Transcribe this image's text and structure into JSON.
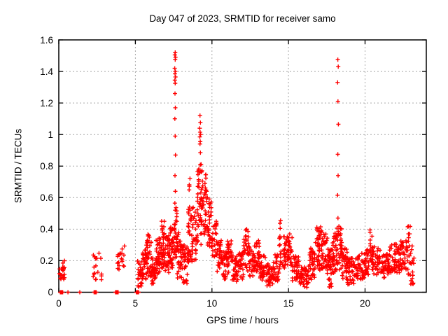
{
  "chart_data": {
    "type": "scatter",
    "title": "Day 047 of 2023, SRMTID for receiver samo",
    "xlabel": "GPS time / hours",
    "ylabel": "SRMTID / TECUs",
    "xlim": [
      0,
      24
    ],
    "ylim": [
      0,
      1.6
    ],
    "x_ticks": [
      0,
      5,
      10,
      15,
      20
    ],
    "x_tick_labels": [
      "0",
      "5",
      "10",
      "15",
      "20"
    ],
    "y_ticks": [
      0,
      0.2,
      0.4,
      0.6,
      0.8,
      1.0,
      1.2,
      1.4,
      1.6
    ],
    "y_tick_labels": [
      "0",
      "0.2",
      "0.4",
      "0.6",
      "0.8",
      "1",
      "1.2",
      "1.4",
      "1.6"
    ],
    "grid": "dotted",
    "legend": "none",
    "marker": "plus",
    "marker_color": "#ff0000",
    "axis_color": "#000000",
    "grid_color": "#a8a8a8",
    "seed": 47,
    "points": [
      [
        0.6,
        0
      ],
      [
        1.37,
        0
      ],
      [
        3.93,
        0.145
      ],
      [
        7.6,
        1.52
      ],
      [
        7.58,
        1.505
      ],
      [
        7.62,
        1.49
      ],
      [
        7.6,
        1.475
      ],
      [
        7.57,
        1.42
      ],
      [
        7.61,
        1.4
      ],
      [
        7.59,
        1.385
      ],
      [
        7.62,
        1.365
      ],
      [
        7.58,
        1.345
      ],
      [
        7.6,
        1.325
      ],
      [
        7.59,
        1.26
      ],
      [
        7.61,
        1.17
      ],
      [
        7.58,
        1.1
      ],
      [
        7.6,
        0.99
      ],
      [
        7.62,
        0.87
      ],
      [
        7.59,
        0.74
      ],
      [
        7.61,
        0.64
      ],
      [
        7.58,
        0.565
      ],
      [
        7.6,
        0.52
      ],
      [
        9.22,
        1.12
      ],
      [
        9.25,
        1.075
      ],
      [
        9.2,
        1.04
      ],
      [
        9.23,
        1.015
      ],
      [
        9.26,
        1.0
      ],
      [
        9.21,
        0.985
      ],
      [
        9.24,
        0.955
      ],
      [
        9.22,
        0.94
      ],
      [
        9.25,
        0.885
      ],
      [
        18.22,
        1.475
      ],
      [
        18.25,
        1.43
      ],
      [
        18.21,
        1.33
      ],
      [
        18.23,
        1.21
      ],
      [
        18.26,
        1.065
      ],
      [
        18.22,
        0.875
      ],
      [
        18.24,
        0.74
      ],
      [
        18.21,
        0.615
      ],
      [
        18.23,
        0.47
      ]
    ],
    "bands": [
      {
        "x0": 0.05,
        "x1": 0.45,
        "y0": 0.08,
        "y1": 0.2,
        "n": 22
      },
      {
        "x0": 0.05,
        "x1": 0.28,
        "y0": 0.0,
        "y1": 0.0,
        "n": 8
      },
      {
        "x0": 2.28,
        "x1": 2.45,
        "y0": 0.0,
        "y1": 0.0,
        "n": 6
      },
      {
        "x0": 3.7,
        "x1": 3.88,
        "y0": 0.0,
        "y1": 0.0,
        "n": 6
      },
      {
        "x0": 5.05,
        "x1": 5.22,
        "y0": 0.0,
        "y1": 0.0,
        "n": 7
      },
      {
        "x0": 2.25,
        "x1": 2.8,
        "y0": 0.07,
        "y1": 0.27,
        "n": 18
      },
      {
        "x0": 3.75,
        "x1": 4.3,
        "y0": 0.14,
        "y1": 0.3,
        "n": 18
      },
      {
        "x0": 5.15,
        "x1": 5.45,
        "y0": 0.03,
        "y1": 0.2,
        "n": 25
      },
      {
        "x0": 5.45,
        "x1": 5.75,
        "y0": 0.08,
        "y1": 0.3,
        "n": 30
      },
      {
        "x0": 5.75,
        "x1": 6.05,
        "y0": 0.1,
        "y1": 0.38,
        "n": 35
      },
      {
        "x0": 6.05,
        "x1": 6.35,
        "y0": 0.05,
        "y1": 0.22,
        "n": 30
      },
      {
        "x0": 6.35,
        "x1": 6.65,
        "y0": 0.1,
        "y1": 0.35,
        "n": 35
      },
      {
        "x0": 6.65,
        "x1": 6.95,
        "y0": 0.15,
        "y1": 0.46,
        "n": 40
      },
      {
        "x0": 6.95,
        "x1": 7.25,
        "y0": 0.12,
        "y1": 0.36,
        "n": 35
      },
      {
        "x0": 7.25,
        "x1": 7.5,
        "y0": 0.15,
        "y1": 0.42,
        "n": 30
      },
      {
        "x0": 7.5,
        "x1": 7.72,
        "y0": 0.2,
        "y1": 0.55,
        "n": 30
      },
      {
        "x0": 7.72,
        "x1": 8.05,
        "y0": 0.08,
        "y1": 0.38,
        "n": 35
      },
      {
        "x0": 8.05,
        "x1": 8.4,
        "y0": 0.05,
        "y1": 0.3,
        "n": 30
      },
      {
        "x0": 8.4,
        "x1": 8.7,
        "y0": 0.15,
        "y1": 0.55,
        "n": 30
      },
      {
        "x0": 8.45,
        "x1": 8.65,
        "y0": 0.45,
        "y1": 0.73,
        "n": 10
      },
      {
        "x0": 8.7,
        "x1": 9.05,
        "y0": 0.2,
        "y1": 0.55,
        "n": 30
      },
      {
        "x0": 9.05,
        "x1": 9.4,
        "y0": 0.55,
        "y1": 0.82,
        "n": 30
      },
      {
        "x0": 9.05,
        "x1": 9.4,
        "y0": 0.3,
        "y1": 0.55,
        "n": 20
      },
      {
        "x0": 9.4,
        "x1": 9.7,
        "y0": 0.35,
        "y1": 0.75,
        "n": 30
      },
      {
        "x0": 9.7,
        "x1": 10.0,
        "y0": 0.28,
        "y1": 0.6,
        "n": 30
      },
      {
        "x0": 10.0,
        "x1": 10.3,
        "y0": 0.22,
        "y1": 0.45,
        "n": 28
      },
      {
        "x0": 10.3,
        "x1": 10.65,
        "y0": 0.13,
        "y1": 0.33,
        "n": 30
      },
      {
        "x0": 10.65,
        "x1": 11.0,
        "y0": 0.08,
        "y1": 0.26,
        "n": 30
      },
      {
        "x0": 11.0,
        "x1": 11.3,
        "y0": 0.12,
        "y1": 0.33,
        "n": 28
      },
      {
        "x0": 11.3,
        "x1": 11.7,
        "y0": 0.06,
        "y1": 0.24,
        "n": 35
      },
      {
        "x0": 11.7,
        "x1": 12.05,
        "y0": 0.08,
        "y1": 0.26,
        "n": 30
      },
      {
        "x0": 12.05,
        "x1": 12.45,
        "y0": 0.13,
        "y1": 0.41,
        "n": 35
      },
      {
        "x0": 12.45,
        "x1": 12.8,
        "y0": 0.1,
        "y1": 0.3,
        "n": 30
      },
      {
        "x0": 12.8,
        "x1": 13.15,
        "y0": 0.12,
        "y1": 0.33,
        "n": 30
      },
      {
        "x0": 13.15,
        "x1": 13.6,
        "y0": 0.07,
        "y1": 0.24,
        "n": 35
      },
      {
        "x0": 13.6,
        "x1": 14.1,
        "y0": 0.04,
        "y1": 0.19,
        "n": 40
      },
      {
        "x0": 14.1,
        "x1": 14.38,
        "y0": 0.07,
        "y1": 0.24,
        "n": 22
      },
      {
        "x0": 14.4,
        "x1": 14.52,
        "y0": 0.12,
        "y1": 0.48,
        "n": 16
      },
      {
        "x0": 14.55,
        "x1": 14.75,
        "y0": 0.12,
        "y1": 0.38,
        "n": 14
      },
      {
        "x0": 14.75,
        "x1": 15.25,
        "y0": 0.14,
        "y1": 0.37,
        "n": 40
      },
      {
        "x0": 15.25,
        "x1": 15.7,
        "y0": 0.07,
        "y1": 0.24,
        "n": 35
      },
      {
        "x0": 15.7,
        "x1": 16.35,
        "y0": 0.03,
        "y1": 0.17,
        "n": 48
      },
      {
        "x0": 16.35,
        "x1": 16.75,
        "y0": 0.08,
        "y1": 0.28,
        "n": 35
      },
      {
        "x0": 16.75,
        "x1": 17.15,
        "y0": 0.14,
        "y1": 0.43,
        "n": 40
      },
      {
        "x0": 17.15,
        "x1": 17.55,
        "y0": 0.11,
        "y1": 0.37,
        "n": 38
      },
      {
        "x0": 17.55,
        "x1": 17.85,
        "y0": 0.03,
        "y1": 0.28,
        "n": 30
      },
      {
        "x0": 17.85,
        "x1": 18.15,
        "y0": 0.12,
        "y1": 0.38,
        "n": 35
      },
      {
        "x0": 18.15,
        "x1": 18.5,
        "y0": 0.14,
        "y1": 0.43,
        "n": 40
      },
      {
        "x0": 18.5,
        "x1": 18.85,
        "y0": 0.07,
        "y1": 0.28,
        "n": 30
      },
      {
        "x0": 18.85,
        "x1": 19.45,
        "y0": 0.05,
        "y1": 0.22,
        "n": 45
      },
      {
        "x0": 19.45,
        "x1": 20.1,
        "y0": 0.08,
        "y1": 0.25,
        "n": 50
      },
      {
        "x0": 20.1,
        "x1": 20.32,
        "y0": 0.1,
        "y1": 0.28,
        "n": 16
      },
      {
        "x0": 20.32,
        "x1": 20.5,
        "y0": 0.14,
        "y1": 0.4,
        "n": 18
      },
      {
        "x0": 20.5,
        "x1": 21.05,
        "y0": 0.11,
        "y1": 0.3,
        "n": 42
      },
      {
        "x0": 21.05,
        "x1": 21.6,
        "y0": 0.08,
        "y1": 0.25,
        "n": 42
      },
      {
        "x0": 21.6,
        "x1": 22.25,
        "y0": 0.12,
        "y1": 0.31,
        "n": 48
      },
      {
        "x0": 22.25,
        "x1": 22.72,
        "y0": 0.14,
        "y1": 0.33,
        "n": 38
      },
      {
        "x0": 22.75,
        "x1": 22.95,
        "y0": 0.1,
        "y1": 0.42,
        "n": 18
      },
      {
        "x0": 22.95,
        "x1": 23.2,
        "y0": 0.05,
        "y1": 0.3,
        "n": 18
      }
    ]
  }
}
